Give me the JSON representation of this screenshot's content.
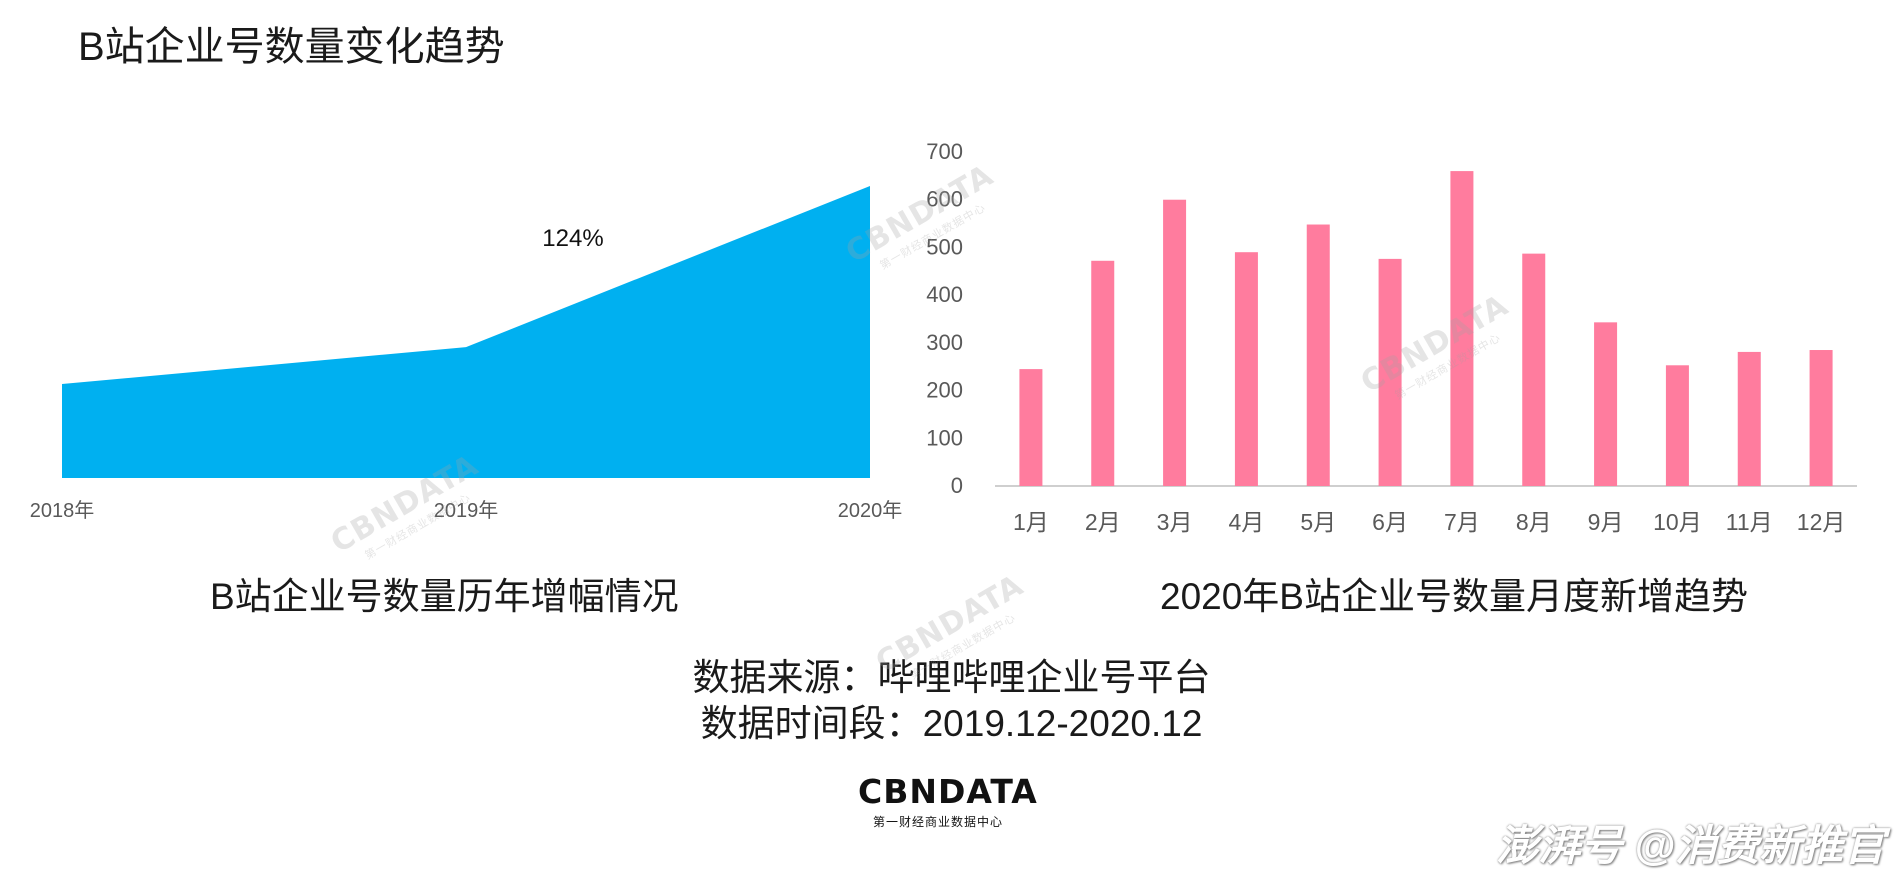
{
  "page": {
    "title": "B站企业号数量变化趋势",
    "source_line": "数据来源：哔哩哔哩企业号平台",
    "period_line": "数据时间段：2019.12-2020.12",
    "footer_credit": "澎湃号 @消费新推官"
  },
  "logo": {
    "main": "CBNDATA",
    "sub": "第一财经商业数据中心"
  },
  "watermark": {
    "main": "CBNDATA",
    "sub": "第一财经商业数据中心"
  },
  "colors": {
    "area": "#00B0F0",
    "bar": "#FF7C9E",
    "axis": "#BFBFBF",
    "tick_text": "#595959"
  },
  "chart_data": [
    {
      "type": "area",
      "title": "B站企业号数量历年增幅情况",
      "categories": [
        "2018年",
        "2019年",
        "2020年"
      ],
      "values": [
        28,
        39,
        87
      ],
      "y_axis_shown": false,
      "annotation": "124%",
      "grid": false
    },
    {
      "type": "bar",
      "title": "2020年B站企业号数量月度新增趋势",
      "categories": [
        "1月",
        "2月",
        "3月",
        "4月",
        "5月",
        "6月",
        "7月",
        "8月",
        "9月",
        "10月",
        "11月",
        "12月"
      ],
      "values": [
        245,
        472,
        600,
        490,
        548,
        476,
        660,
        487,
        343,
        253,
        281,
        285
      ],
      "ylim": [
        0,
        700
      ],
      "yticks": [
        0,
        100,
        200,
        300,
        400,
        500,
        600,
        700
      ],
      "grid": false
    }
  ]
}
